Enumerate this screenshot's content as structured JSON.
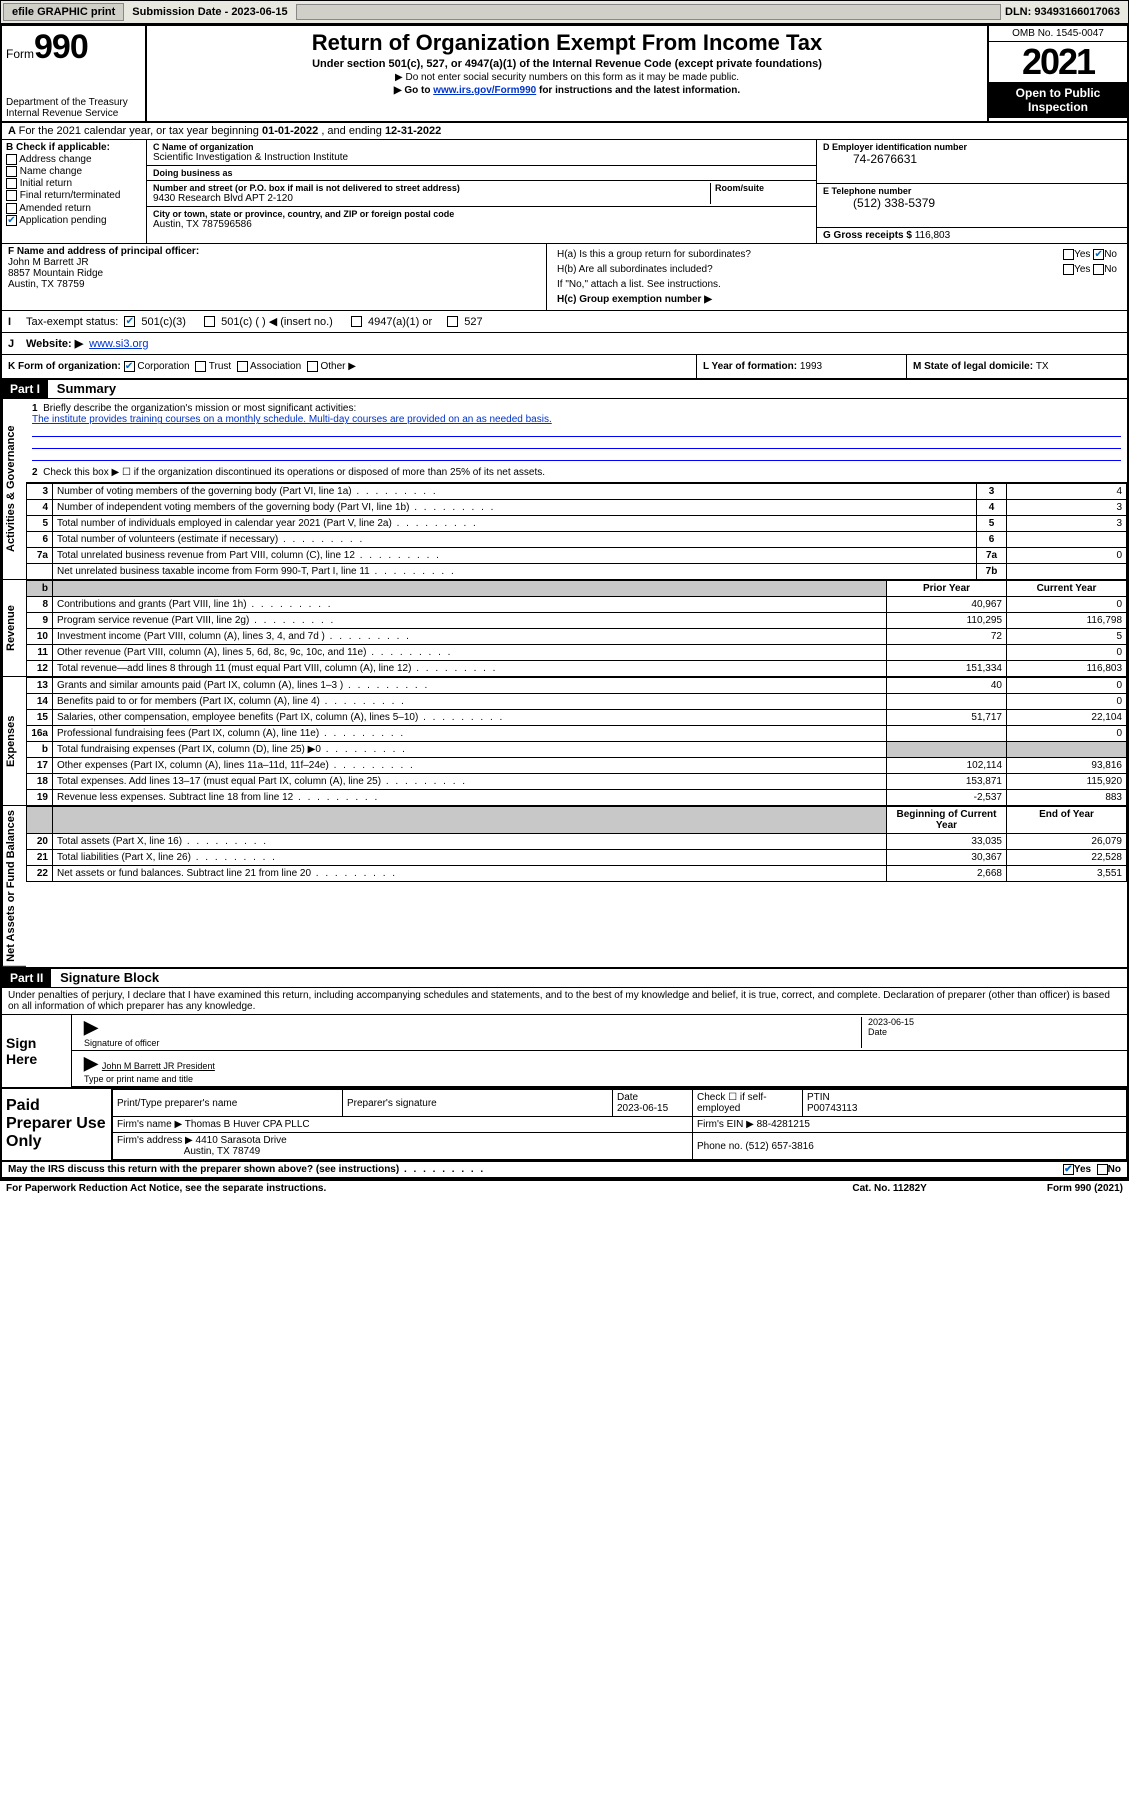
{
  "topbar": {
    "efile": "efile GRAPHIC print",
    "sub_label": "Submission Date - 2023-06-15",
    "dln": "DLN: 93493166017063"
  },
  "header": {
    "form_word": "Form",
    "form_num": "990",
    "dept": "Department of the Treasury",
    "irs": "Internal Revenue Service",
    "title": "Return of Organization Exempt From Income Tax",
    "sub1": "Under section 501(c), 527, or 4947(a)(1) of the Internal Revenue Code (except private foundations)",
    "sub2": "▶ Do not enter social security numbers on this form as it may be made public.",
    "sub3_pre": "▶ Go to ",
    "sub3_link": "www.irs.gov/Form990",
    "sub3_post": " for instructions and the latest information.",
    "omb": "OMB No. 1545-0047",
    "year": "2021",
    "open": "Open to Public Inspection"
  },
  "period": {
    "text_a": "For the 2021 calendar year, or tax year beginning ",
    "begin": "01-01-2022",
    "text_b": " , and ending ",
    "end": "12-31-2022"
  },
  "boxB": {
    "hdr": "B Check if applicable:",
    "items": [
      "Address change",
      "Name change",
      "Initial return",
      "Final return/terminated",
      "Amended return",
      "Application pending"
    ]
  },
  "boxC": {
    "name_lbl": "C Name of organization",
    "name": "Scientific Investigation & Instruction Institute",
    "dba_lbl": "Doing business as",
    "dba": "",
    "addr_lbl": "Number and street (or P.O. box if mail is not delivered to street address)",
    "room_lbl": "Room/suite",
    "addr": "9430 Research Blvd APT 2-120",
    "city_lbl": "City or town, state or province, country, and ZIP or foreign postal code",
    "city": "Austin, TX  787596586"
  },
  "boxD": {
    "lbl": "D Employer identification number",
    "val": "74-2676631"
  },
  "boxE": {
    "lbl": "E Telephone number",
    "val": "(512) 338-5379"
  },
  "boxG": {
    "lbl": "G Gross receipts $",
    "val": "116,803"
  },
  "boxF": {
    "lbl": "F Name and address of principal officer:",
    "name": "John M Barrett JR",
    "addr1": "8857 Mountain Ridge",
    "addr2": "Austin, TX  78759"
  },
  "boxH": {
    "ha": "H(a)  Is this a group return for subordinates?",
    "hb": "H(b)  Are all subordinates included?",
    "hb_note": "If \"No,\" attach a list. See instructions.",
    "hc": "H(c)  Group exemption number ▶",
    "yes": "Yes",
    "no": "No"
  },
  "lineI": {
    "lbl": "Tax-exempt status:",
    "opts": [
      "501(c)(3)",
      "501(c) (  ) ◀ (insert no.)",
      "4947(a)(1) or",
      "527"
    ]
  },
  "lineJ": {
    "lbl": "Website: ▶",
    "val": "www.si3.org"
  },
  "lineK": {
    "lbl": "K Form of organization:",
    "opts": [
      "Corporation",
      "Trust",
      "Association",
      "Other ▶"
    ]
  },
  "lineL": {
    "lbl": "L Year of formation: ",
    "val": "1993"
  },
  "lineM": {
    "lbl": "M State of legal domicile: ",
    "val": "TX"
  },
  "part1": {
    "hdr": "Part I",
    "title": "Summary",
    "q1_lbl": "1",
    "q1": "Briefly describe the organization's mission or most significant activities:",
    "q1_ans": "The institute provides training courses on a monthly schedule. Multi-day courses are provided on an as needed basis.",
    "q2_lbl": "2",
    "q2": "Check this box ▶ ☐  if the organization discontinued its operations or disposed of more than 25% of its net assets.",
    "side_ag": "Activities & Governance",
    "side_rev": "Revenue",
    "side_exp": "Expenses",
    "side_na": "Net Assets or Fund Balances",
    "rows_gov": [
      {
        "n": "3",
        "d": "Number of voting members of the governing body (Part VI, line 1a)",
        "b": "3",
        "v": "4"
      },
      {
        "n": "4",
        "d": "Number of independent voting members of the governing body (Part VI, line 1b)",
        "b": "4",
        "v": "3"
      },
      {
        "n": "5",
        "d": "Total number of individuals employed in calendar year 2021 (Part V, line 2a)",
        "b": "5",
        "v": "3"
      },
      {
        "n": "6",
        "d": "Total number of volunteers (estimate if necessary)",
        "b": "6",
        "v": ""
      },
      {
        "n": "7a",
        "d": "Total unrelated business revenue from Part VIII, column (C), line 12",
        "b": "7a",
        "v": "0"
      },
      {
        "n": "",
        "d": "Net unrelated business taxable income from Form 990-T, Part I, line 11",
        "b": "7b",
        "v": ""
      }
    ],
    "col_prior": "Prior Year",
    "col_curr": "Current Year",
    "rows_rev": [
      {
        "n": "8",
        "d": "Contributions and grants (Part VIII, line 1h)",
        "p": "40,967",
        "c": "0"
      },
      {
        "n": "9",
        "d": "Program service revenue (Part VIII, line 2g)",
        "p": "110,295",
        "c": "116,798"
      },
      {
        "n": "10",
        "d": "Investment income (Part VIII, column (A), lines 3, 4, and 7d )",
        "p": "72",
        "c": "5"
      },
      {
        "n": "11",
        "d": "Other revenue (Part VIII, column (A), lines 5, 6d, 8c, 9c, 10c, and 11e)",
        "p": "",
        "c": "0"
      },
      {
        "n": "12",
        "d": "Total revenue—add lines 8 through 11 (must equal Part VIII, column (A), line 12)",
        "p": "151,334",
        "c": "116,803"
      }
    ],
    "rows_exp": [
      {
        "n": "13",
        "d": "Grants and similar amounts paid (Part IX, column (A), lines 1–3 )",
        "p": "40",
        "c": "0"
      },
      {
        "n": "14",
        "d": "Benefits paid to or for members (Part IX, column (A), line 4)",
        "p": "",
        "c": "0"
      },
      {
        "n": "15",
        "d": "Salaries, other compensation, employee benefits (Part IX, column (A), lines 5–10)",
        "p": "51,717",
        "c": "22,104"
      },
      {
        "n": "16a",
        "d": "Professional fundraising fees (Part IX, column (A), line 11e)",
        "p": "",
        "c": "0"
      },
      {
        "n": "b",
        "d": "Total fundraising expenses (Part IX, column (D), line 25) ▶0",
        "p": "grey",
        "c": "grey"
      },
      {
        "n": "17",
        "d": "Other expenses (Part IX, column (A), lines 11a–11d, 11f–24e)",
        "p": "102,114",
        "c": "93,816"
      },
      {
        "n": "18",
        "d": "Total expenses. Add lines 13–17 (must equal Part IX, column (A), line 25)",
        "p": "153,871",
        "c": "115,920"
      },
      {
        "n": "19",
        "d": "Revenue less expenses. Subtract line 18 from line 12",
        "p": "-2,537",
        "c": "883"
      }
    ],
    "col_begin": "Beginning of Current Year",
    "col_end": "End of Year",
    "rows_na": [
      {
        "n": "20",
        "d": "Total assets (Part X, line 16)",
        "p": "33,035",
        "c": "26,079"
      },
      {
        "n": "21",
        "d": "Total liabilities (Part X, line 26)",
        "p": "30,367",
        "c": "22,528"
      },
      {
        "n": "22",
        "d": "Net assets or fund balances. Subtract line 21 from line 20",
        "p": "2,668",
        "c": "3,551"
      }
    ]
  },
  "part2": {
    "hdr": "Part II",
    "title": "Signature Block",
    "decl": "Under penalties of perjury, I declare that I have examined this return, including accompanying schedules and statements, and to the best of my knowledge and belief, it is true, correct, and complete. Declaration of preparer (other than officer) is based on all information of which preparer has any knowledge."
  },
  "sign": {
    "left": "Sign Here",
    "sig_lbl": "Signature of officer",
    "date_lbl": "Date",
    "date": "2023-06-15",
    "name": "John M Barrett JR  President",
    "name_lbl": "Type or print name and title"
  },
  "prep": {
    "left": "Paid Preparer Use Only",
    "h1": "Print/Type preparer's name",
    "h2": "Preparer's signature",
    "h3": "Date",
    "h3v": "2023-06-15",
    "h4": "Check ☐ if self-employed",
    "h5": "PTIN",
    "h5v": "P00743113",
    "firm_lbl": "Firm's name    ▶",
    "firm": "Thomas B Huver CPA PLLC",
    "ein_lbl": "Firm's EIN ▶",
    "ein": "88-4281215",
    "addr_lbl": "Firm's address ▶",
    "addr1": "4410 Sarasota Drive",
    "addr2": "Austin, TX  78749",
    "phone_lbl": "Phone no.",
    "phone": "(512) 657-3816"
  },
  "footer": {
    "q": "May the IRS discuss this return with the preparer shown above? (see instructions)",
    "yes": "Yes",
    "no": "No",
    "pra": "For Paperwork Reduction Act Notice, see the separate instructions.",
    "cat": "Cat. No. 11282Y",
    "form": "Form 990 (2021)"
  },
  "style": {
    "link_color": "#0033cc",
    "check_color": "#0066cc"
  }
}
